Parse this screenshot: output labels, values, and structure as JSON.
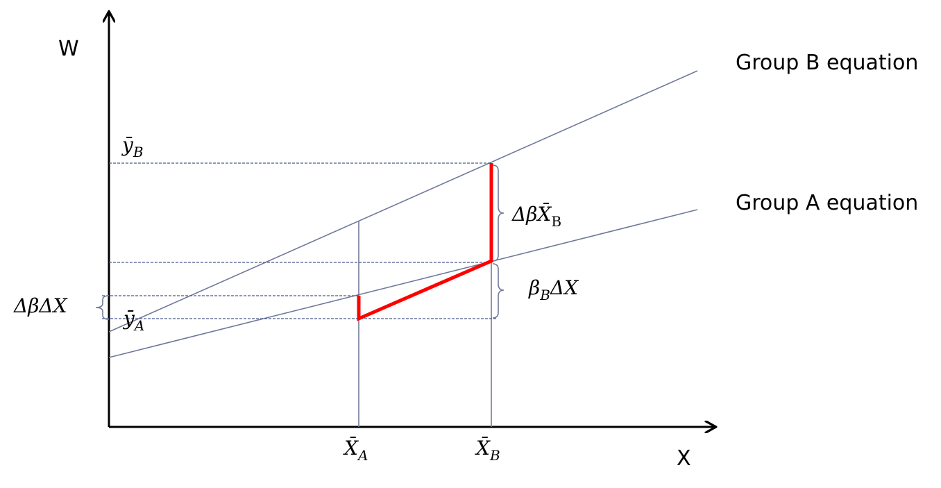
{
  "axes": {
    "y_label": "W",
    "x_label": "X"
  },
  "lines": {
    "group_b": "Group B equation",
    "group_a": "Group A equation"
  },
  "labels": {
    "y_bar_b": {
      "base": "ȳ",
      "sub": "B"
    },
    "y_bar_a": {
      "base": "ȳ",
      "sub": "A"
    },
    "delta_beta_xb": {
      "base": "ΔβX̄",
      "sub": "B"
    },
    "beta_b_delta_x": {
      "base": "β",
      "sub": "B",
      "after": "ΔX"
    },
    "delta_beta_delta_x": "ΔβΔX",
    "x_bar_a": {
      "base": "X̄",
      "sub": "A"
    },
    "x_bar_b": {
      "base": "X̄",
      "sub": "B"
    }
  }
}
